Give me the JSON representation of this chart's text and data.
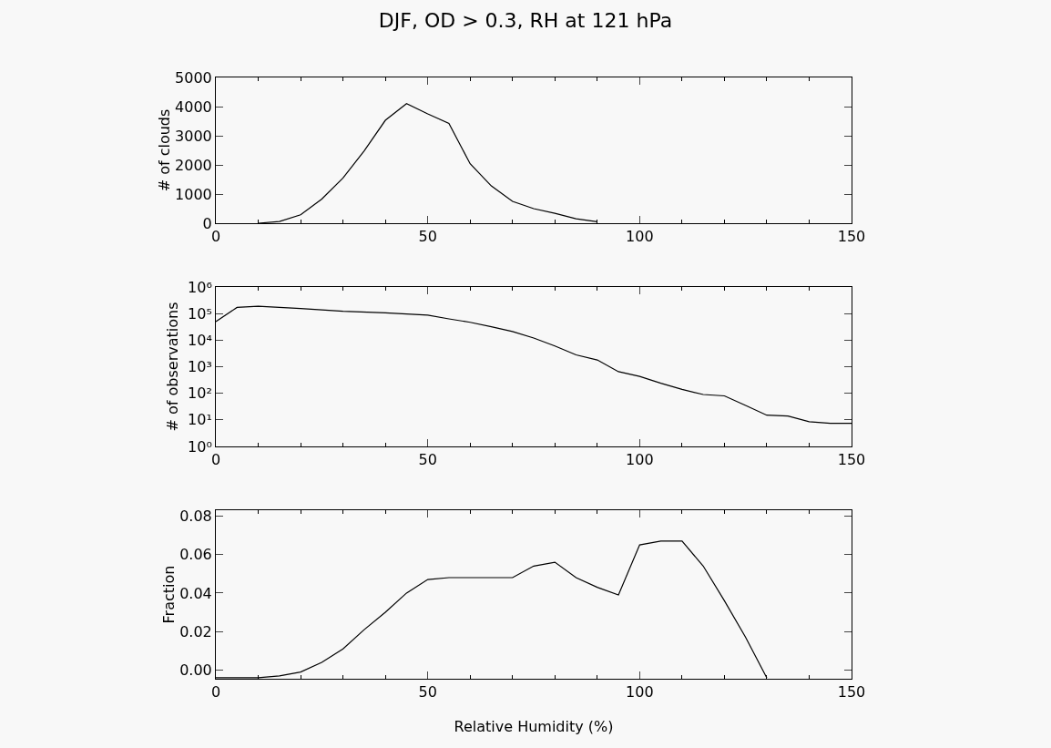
{
  "chart_data": [
    {
      "type": "line",
      "title": "DJF, OD > 0.3, RH at 121 hPa",
      "ylabel": "# of clouds",
      "x": [
        10,
        15,
        20,
        25,
        30,
        35,
        40,
        45,
        50,
        55,
        60,
        65,
        70,
        75,
        80,
        85,
        90
      ],
      "series": [
        {
          "color": "#000000",
          "values": [
            0,
            60,
            290,
            830,
            1550,
            2480,
            3530,
            4100,
            3750,
            3420,
            2040,
            1280,
            750,
            500,
            340,
            150,
            50
          ]
        }
      ],
      "xlim": [
        0,
        150
      ],
      "xticks": [
        0,
        50,
        100,
        150
      ],
      "ylim": [
        0,
        5000
      ],
      "yticks": [
        0,
        1000,
        2000,
        3000,
        4000,
        5000
      ],
      "grid": false,
      "marker": "none",
      "line_style": "solid"
    },
    {
      "type": "line",
      "ylabel": "# of observations",
      "x": [
        0,
        5,
        10,
        20,
        30,
        40,
        50,
        55,
        60,
        65,
        70,
        75,
        80,
        85,
        90,
        95,
        100,
        105,
        110,
        115,
        120,
        125,
        130,
        135,
        140,
        145,
        150
      ],
      "series": [
        {
          "color": "#000000",
          "values": [
            50000,
            170000,
            190000,
            155000,
            123000,
            107000,
            87000,
            63000,
            47000,
            32000,
            21000,
            12000,
            6000,
            2800,
            1800,
            650,
            430,
            240,
            140,
            90,
            80,
            35,
            15,
            14,
            8.5,
            7.4,
            7.4
          ]
        }
      ],
      "xlim": [
        0,
        150
      ],
      "xticks": [
        0,
        50,
        100,
        150
      ],
      "log": "y",
      "ylim": [
        1,
        1000000
      ],
      "yticks": [
        {
          "value": 1,
          "label": "10⁰"
        },
        {
          "value": 10,
          "label": "10¹"
        },
        {
          "value": 100,
          "label": "10²"
        },
        {
          "value": 1000,
          "label": "10³"
        },
        {
          "value": 10000,
          "label": "10⁴"
        },
        {
          "value": 100000,
          "label": "10⁵"
        },
        {
          "value": 1000000,
          "label": "10⁶"
        }
      ],
      "grid": false,
      "marker": "none",
      "line_style": "solid"
    },
    {
      "type": "line",
      "xlabel": "Relative Humidity (%)",
      "ylabel": "Fraction",
      "x": [
        0,
        5,
        10,
        15,
        20,
        25,
        30,
        35,
        40,
        45,
        50,
        55,
        60,
        65,
        70,
        75,
        80,
        85,
        90,
        95,
        100,
        105,
        110,
        115,
        120,
        125,
        130
      ],
      "series": [
        {
          "color": "#000000",
          "values": [
            -0.004,
            -0.004,
            -0.004,
            -0.003,
            -0.001,
            0.004,
            0.011,
            0.021,
            0.03,
            0.04,
            0.047,
            0.048,
            0.048,
            0.048,
            0.048,
            0.054,
            0.056,
            0.048,
            0.043,
            0.039,
            0.065,
            0.067,
            0.067,
            0.054,
            0.036,
            0.017,
            -0.004
          ]
        }
      ],
      "xlim": [
        0,
        150
      ],
      "xticks": [
        0,
        50,
        100,
        150
      ],
      "ylim": [
        -0.0045,
        0.083
      ],
      "yticks": [
        {
          "value": 0,
          "label": "0.00"
        },
        {
          "value": 0.02,
          "label": "0.02"
        },
        {
          "value": 0.04,
          "label": "0.04"
        },
        {
          "value": 0.06,
          "label": "0.06"
        },
        {
          "value": 0.08,
          "label": "0.08"
        }
      ],
      "grid": false,
      "marker": "none",
      "line_style": "solid"
    }
  ]
}
